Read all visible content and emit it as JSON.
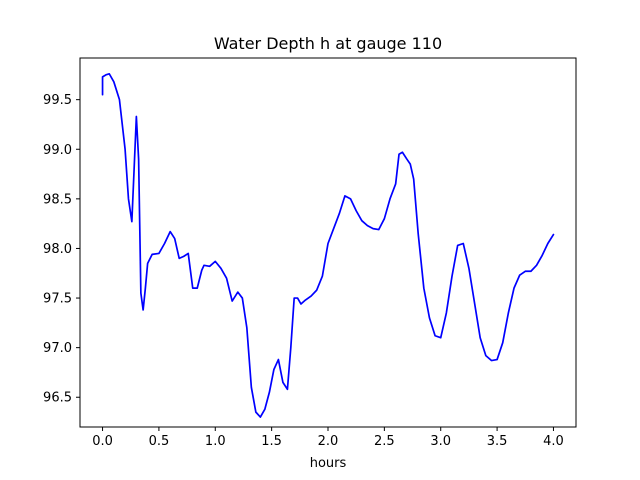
{
  "chart_data": {
    "type": "line",
    "title": "Water Depth h at gauge 110",
    "xlabel": "hours",
    "ylabel": "",
    "xlim": [
      -0.2,
      4.2
    ],
    "ylim": [
      96.2,
      99.92
    ],
    "xticks": [
      0.0,
      0.5,
      1.0,
      1.5,
      2.0,
      2.5,
      3.0,
      3.5,
      4.0
    ],
    "xtick_labels": [
      "0.0",
      "0.5",
      "1.0",
      "1.5",
      "2.0",
      "2.5",
      "3.0",
      "3.5",
      "4.0"
    ],
    "yticks": [
      96.5,
      97.0,
      97.5,
      98.0,
      98.5,
      99.0,
      99.5
    ],
    "ytick_labels": [
      "96.5",
      "97.0",
      "97.5",
      "98.0",
      "98.5",
      "99.0",
      "99.5"
    ],
    "grid": false,
    "legend": "none",
    "series": [
      {
        "color": "#0000ff",
        "x": [
          0.0,
          0.0,
          0.03,
          0.06,
          0.1,
          0.15,
          0.2,
          0.23,
          0.26,
          0.28,
          0.3,
          0.32,
          0.34,
          0.36,
          0.38,
          0.4,
          0.44,
          0.5,
          0.55,
          0.6,
          0.64,
          0.68,
          0.72,
          0.76,
          0.8,
          0.84,
          0.88,
          0.9,
          0.95,
          1.0,
          1.05,
          1.1,
          1.15,
          1.2,
          1.24,
          1.28,
          1.32,
          1.36,
          1.4,
          1.44,
          1.48,
          1.52,
          1.56,
          1.6,
          1.64,
          1.67,
          1.7,
          1.73,
          1.76,
          1.8,
          1.85,
          1.9,
          1.95,
          2.0,
          2.05,
          2.1,
          2.15,
          2.2,
          2.25,
          2.3,
          2.35,
          2.4,
          2.45,
          2.5,
          2.55,
          2.6,
          2.63,
          2.66,
          2.7,
          2.73,
          2.76,
          2.8,
          2.85,
          2.9,
          2.95,
          3.0,
          3.05,
          3.1,
          3.15,
          3.2,
          3.25,
          3.3,
          3.35,
          3.4,
          3.45,
          3.5,
          3.55,
          3.6,
          3.65,
          3.7,
          3.75,
          3.8,
          3.85,
          3.9,
          3.95,
          4.0
        ],
        "y": [
          99.55,
          99.73,
          99.75,
          99.76,
          99.68,
          99.5,
          99.0,
          98.5,
          98.27,
          98.8,
          99.33,
          98.9,
          97.55,
          97.38,
          97.6,
          97.85,
          97.94,
          97.95,
          98.05,
          98.17,
          98.1,
          97.9,
          97.92,
          97.95,
          97.6,
          97.6,
          97.78,
          97.83,
          97.82,
          97.87,
          97.8,
          97.7,
          97.47,
          97.56,
          97.5,
          97.2,
          96.6,
          96.35,
          96.3,
          96.38,
          96.55,
          96.78,
          96.88,
          96.65,
          96.58,
          97.0,
          97.5,
          97.5,
          97.44,
          97.48,
          97.52,
          97.58,
          97.72,
          98.05,
          98.2,
          98.35,
          98.53,
          98.5,
          98.38,
          98.28,
          98.23,
          98.2,
          98.19,
          98.3,
          98.5,
          98.65,
          98.95,
          98.97,
          98.9,
          98.85,
          98.7,
          98.15,
          97.6,
          97.3,
          97.12,
          97.1,
          97.35,
          97.72,
          98.03,
          98.05,
          97.8,
          97.45,
          97.1,
          96.92,
          96.87,
          96.88,
          97.05,
          97.35,
          97.6,
          97.73,
          97.77,
          97.77,
          97.83,
          97.93,
          98.05,
          98.14
        ]
      }
    ]
  }
}
